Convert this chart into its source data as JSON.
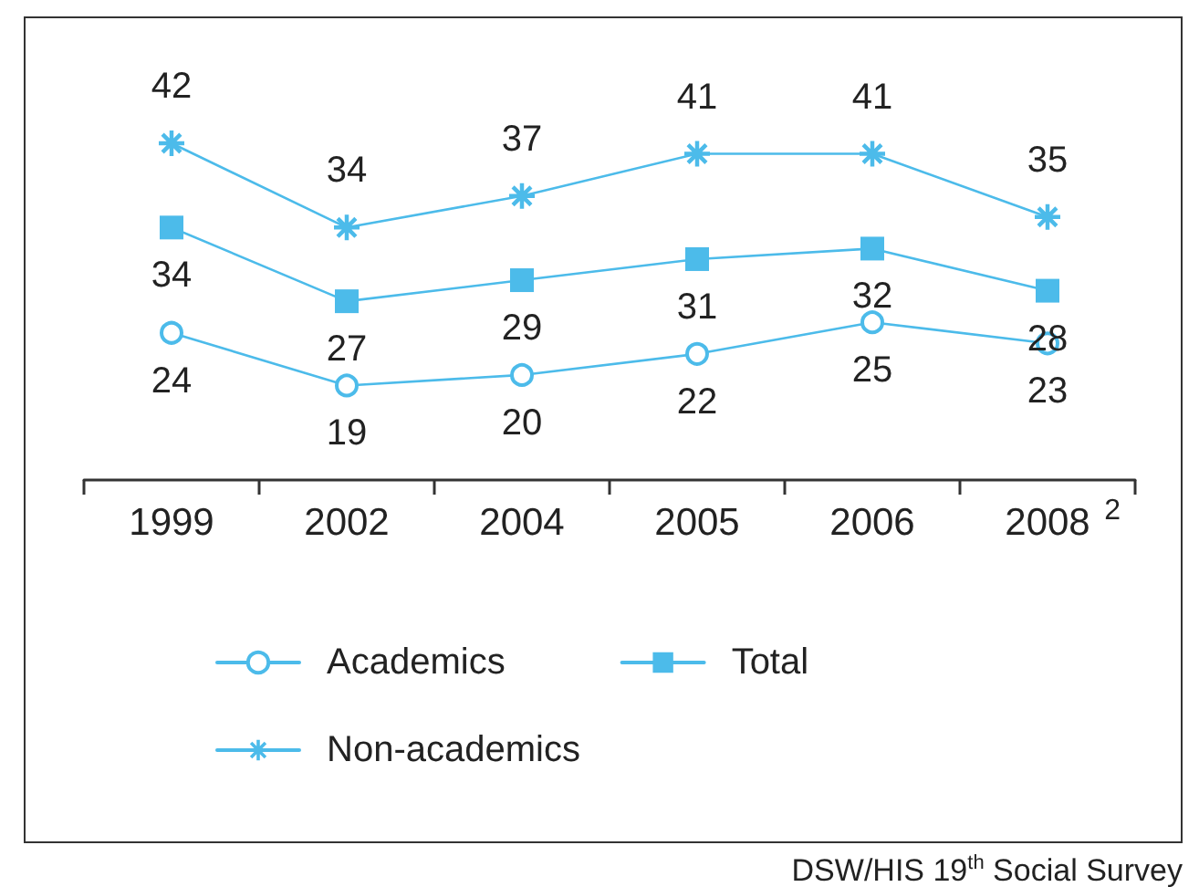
{
  "chart_data": {
    "type": "line",
    "categories": [
      "1999",
      "2002",
      "2004",
      "2005",
      "2006",
      "2008"
    ],
    "series": [
      {
        "name": "Academics",
        "color": "#4cbbea",
        "marker": "circle",
        "values": [
          24,
          19,
          20,
          22,
          25,
          23
        ]
      },
      {
        "name": "Total",
        "color": "#4cbbea",
        "marker": "square",
        "values": [
          34,
          27,
          29,
          31,
          32,
          28
        ]
      },
      {
        "name": "Non-academics",
        "color": "#4cbbea",
        "marker": "star",
        "values": [
          42,
          34,
          37,
          41,
          41,
          35
        ]
      }
    ],
    "data_labels": true,
    "legend": "bottom",
    "tick_labels": "x",
    "annotations": [
      "2",
      "DSW/HIS 19$^{th}$ Social Survey"
    ]
  }
}
